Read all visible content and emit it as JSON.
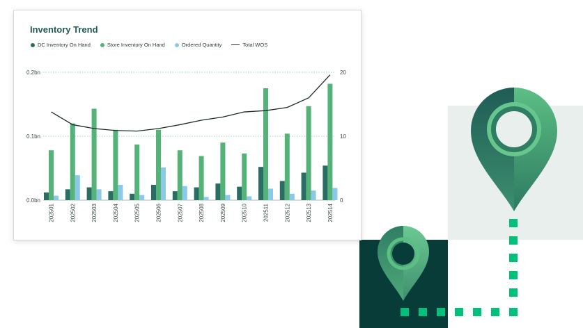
{
  "chart_data": {
    "type": "bar",
    "title": "Inventory Trend",
    "categories": [
      "202501",
      "202502",
      "202503",
      "202504",
      "202505",
      "202506",
      "202507",
      "202508",
      "202509",
      "202510",
      "202511",
      "202512",
      "202513",
      "202514"
    ],
    "series": [
      {
        "name": "DC Inventory On Hand",
        "type": "bar",
        "axis": "left",
        "color": "#2a6e63",
        "values": [
          0.012,
          0.017,
          0.02,
          0.014,
          0.01,
          0.024,
          0.014,
          0.02,
          0.026,
          0.021,
          0.052,
          0.03,
          0.043,
          0.054
        ]
      },
      {
        "name": "Store Inventory On Hand",
        "type": "bar",
        "axis": "left",
        "color": "#55b37a",
        "values": [
          0.078,
          0.12,
          0.143,
          0.11,
          0.087,
          0.11,
          0.078,
          0.069,
          0.09,
          0.073,
          0.175,
          0.104,
          0.147,
          0.182
        ]
      },
      {
        "name": "Ordered Quantity",
        "type": "bar",
        "axis": "left",
        "color": "#8cc9e8",
        "values": [
          0.007,
          0.039,
          0.017,
          0.024,
          0.008,
          0.051,
          0.022,
          0.005,
          0.008,
          0.006,
          0.018,
          0.01,
          0.015,
          0.019
        ]
      },
      {
        "name": "Total WOS",
        "type": "line",
        "axis": "right",
        "color": "#1c2a2a",
        "values": [
          13.8,
          11.8,
          11.2,
          10.9,
          10.8,
          11.2,
          11.8,
          12.5,
          13.0,
          13.8,
          14.0,
          14.5,
          16.0,
          19.6
        ]
      }
    ],
    "y_left": {
      "range": [
        0,
        0.2
      ],
      "ticks": [
        0,
        0.1,
        0.2
      ],
      "tick_labels": [
        "0.0bn",
        "0.1bn",
        "0.2bn"
      ]
    },
    "y_right": {
      "range": [
        0,
        20
      ],
      "ticks": [
        0,
        10,
        20
      ],
      "tick_labels": [
        "0",
        "10",
        "20"
      ]
    },
    "xlabel": "",
    "ylabel": "",
    "grid": "horizontal dotted",
    "legend": "top-left"
  },
  "decor": {
    "panel_light": "#e8efec",
    "panel_dark": "#073c39",
    "pin_icon_color_light": "#55b37a",
    "pin_icon_color_dark": "#1e5a55",
    "path_dot_color": "#00c07a"
  }
}
